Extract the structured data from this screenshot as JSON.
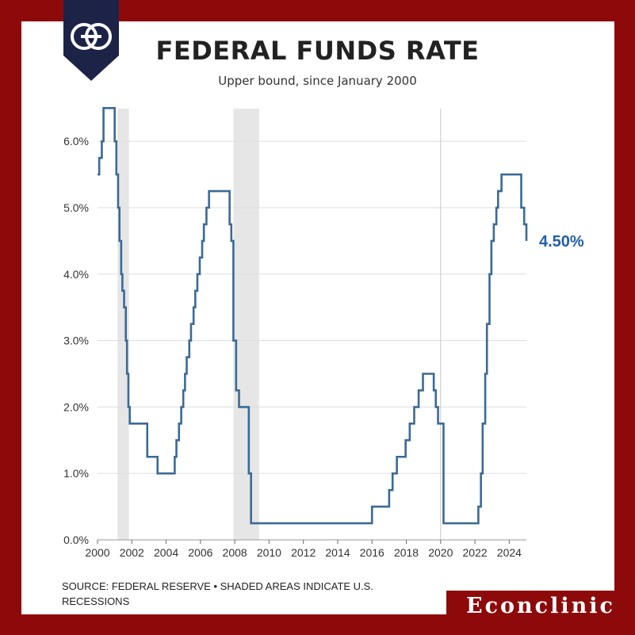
{
  "title": "FEDERAL FUNDS RATE",
  "subtitle": "Upper bound, since January 2000",
  "source": "SOURCE: FEDERAL RESERVE • SHADED AREAS INDICATE U.S. RECESSIONS",
  "brand": "Econclinic",
  "colors": {
    "background": "#8e0a0a",
    "line": "#3a6a96",
    "end_label": "#1f5fa8",
    "recession": "#e6e6e6"
  },
  "chart_data": {
    "type": "line",
    "title": "FEDERAL FUNDS RATE",
    "subtitle": "Upper bound, since January 2000",
    "xlabel": "",
    "ylabel": "",
    "xlim": [
      2000,
      2025
    ],
    "ylim": [
      0,
      6.5
    ],
    "x_ticks": [
      2000,
      2002,
      2004,
      2006,
      2008,
      2010,
      2012,
      2014,
      2016,
      2018,
      2020,
      2022,
      2024
    ],
    "y_ticks": [
      0,
      1,
      2,
      3,
      4,
      5,
      6
    ],
    "y_tick_labels": [
      "0.0%",
      "1.0%",
      "2.0%",
      "3.0%",
      "4.0%",
      "5.0%",
      "6.0%"
    ],
    "grid": true,
    "recessions": [
      [
        2001.17,
        2001.83
      ],
      [
        2007.92,
        2009.42
      ]
    ],
    "vline": 2020.0,
    "end_label": "4.50%",
    "series": [
      {
        "x": [
          2000.0,
          2000.1,
          2000.25,
          2000.35,
          2000.6,
          2001.0,
          2001.1,
          2001.2,
          2001.28,
          2001.38,
          2001.45,
          2001.55,
          2001.65,
          2001.72,
          2001.8,
          2001.88,
          2001.95,
          2002.9,
          2003.5,
          2004.5,
          2004.6,
          2004.75,
          2004.88,
          2005.0,
          2005.1,
          2005.2,
          2005.35,
          2005.45,
          2005.6,
          2005.7,
          2005.82,
          2005.96,
          2006.1,
          2006.2,
          2006.35,
          2006.5,
          2007.7,
          2007.8,
          2007.92,
          2008.05,
          2008.08,
          2008.25,
          2008.4,
          2008.82,
          2008.95,
          2016.0,
          2017.0,
          2017.2,
          2017.45,
          2017.96,
          2018.2,
          2018.46,
          2018.72,
          2018.97,
          2019.6,
          2019.72,
          2019.85,
          2020.17,
          2022.2,
          2022.35,
          2022.45,
          2022.6,
          2022.7,
          2022.85,
          2022.96,
          2023.1,
          2023.25,
          2023.35,
          2023.55,
          2024.7,
          2024.87,
          2025.0
        ],
        "y": [
          5.5,
          5.75,
          6.0,
          6.5,
          6.5,
          6.0,
          5.5,
          5.0,
          4.5,
          4.0,
          3.75,
          3.5,
          3.0,
          2.5,
          2.0,
          1.75,
          1.75,
          1.25,
          1.0,
          1.25,
          1.5,
          1.75,
          2.0,
          2.25,
          2.5,
          2.75,
          3.0,
          3.25,
          3.5,
          3.75,
          4.0,
          4.25,
          4.5,
          4.75,
          5.0,
          5.25,
          4.75,
          4.5,
          3.0,
          3.0,
          2.25,
          2.0,
          2.0,
          1.0,
          0.25,
          0.5,
          0.75,
          1.0,
          1.25,
          1.5,
          1.75,
          2.0,
          2.25,
          2.5,
          2.25,
          2.0,
          1.75,
          0.25,
          0.5,
          1.0,
          1.75,
          2.5,
          3.25,
          4.0,
          4.5,
          4.75,
          5.0,
          5.25,
          5.5,
          5.0,
          4.75,
          4.5
        ]
      }
    ]
  }
}
